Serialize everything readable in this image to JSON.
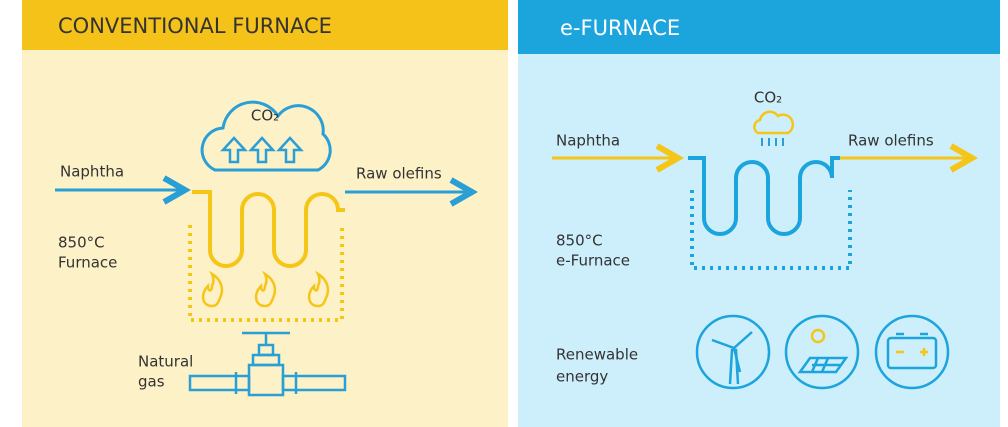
{
  "left": {
    "title": "CONVENTIONAL FURNACE",
    "emission": "CO₂",
    "input": "Naphtha",
    "output": "Raw olefins",
    "furnace": [
      "850°C",
      "Furnace"
    ],
    "fuel": [
      "Natural",
      "gas"
    ]
  },
  "right": {
    "title": "e-FURNACE",
    "emission": "CO₂",
    "input": "Naphtha",
    "output": "Raw olefins",
    "furnace": [
      "850°C",
      "e-Furnace"
    ],
    "fuel": [
      "Renewable",
      "energy"
    ]
  }
}
